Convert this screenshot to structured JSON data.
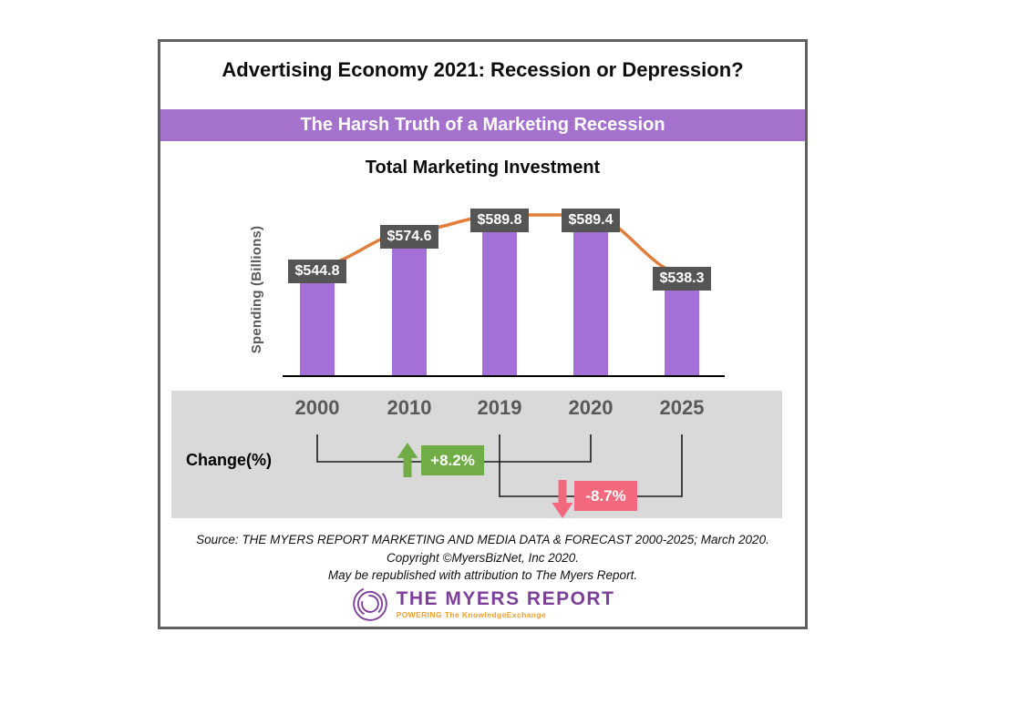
{
  "card": {
    "title": "Advertising Economy 2021: Recession or Depression?",
    "banner": "The Harsh Truth of a Marketing Recession",
    "subtitle": "Total Marketing Investment"
  },
  "chart_data": {
    "type": "bar",
    "title": "Total Marketing Investment",
    "ylabel": "Spending (Billions)",
    "categories": [
      "2000",
      "2010",
      "2019",
      "2020",
      "2025"
    ],
    "values": [
      544.8,
      574.6,
      589.8,
      589.4,
      538.3
    ],
    "bar_labels": [
      "$544.8",
      "$574.6",
      "$589.8",
      "$589.4",
      "$538.3"
    ],
    "ylim": [
      463,
      600
    ],
    "line_overlay": "smooth trend line through bar tops",
    "change_axis_label": "Change(%)",
    "changes": [
      {
        "from": "2000",
        "to": "2020",
        "label": "+8.2%",
        "direction": "up"
      },
      {
        "from": "2019",
        "to": "2025",
        "label": "-8.7%",
        "direction": "down"
      }
    ]
  },
  "footer": {
    "source_line1": "Source: THE MYERS REPORT MARKETING AND MEDIA DATA & FORECAST 2000-2025; March 2020.",
    "source_line2": "Copyright ©MyersBizNet, Inc 2020.",
    "source_line3": "May be republished with attribution to The Myers Report.",
    "logo_text": "THE MYERS REPORT",
    "logo_tagline": "POWERING The KnowledgeExchange"
  },
  "colors": {
    "bar": "#a46fd6",
    "banner": "#a472cc",
    "line": "#e07e3c",
    "label_box": "#555555",
    "positive": "#70ad47",
    "negative": "#f2697e",
    "band": "#d9d9d9",
    "axis_text": "#595959",
    "logo_purple": "#7d3f98",
    "logo_orange": "#f0a030"
  }
}
